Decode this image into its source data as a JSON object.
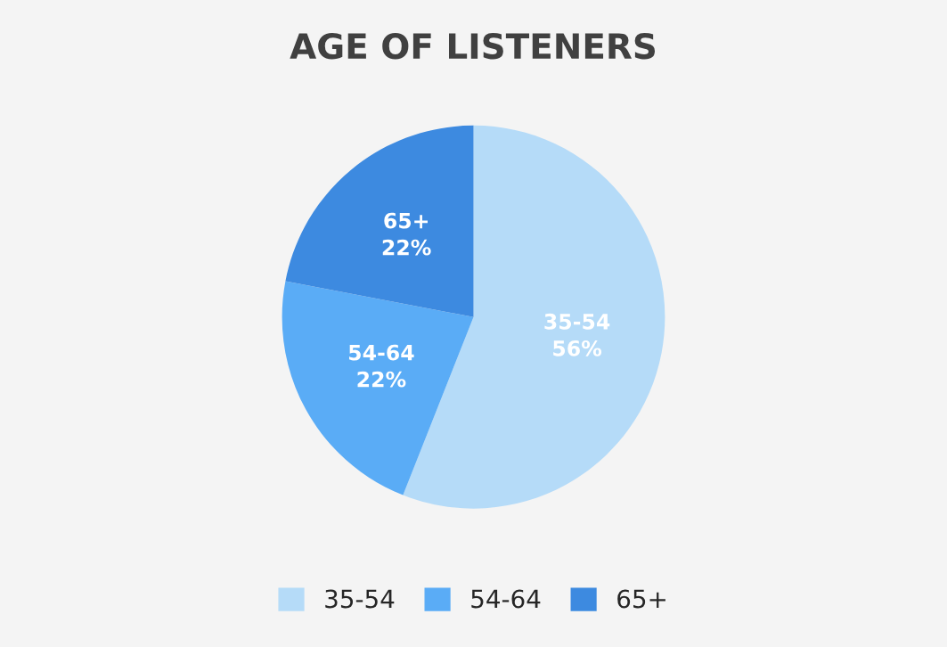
{
  "chart_data": {
    "type": "pie",
    "title": "AGE OF LISTENERS",
    "categories": [
      "35-54",
      "54-64",
      "65+"
    ],
    "values": [
      56,
      22,
      22
    ],
    "colors": [
      "#b5dbf8",
      "#5aacf6",
      "#3d8ae0"
    ],
    "value_labels": [
      "56%",
      "22%",
      "22%"
    ],
    "legend": "bottom"
  }
}
